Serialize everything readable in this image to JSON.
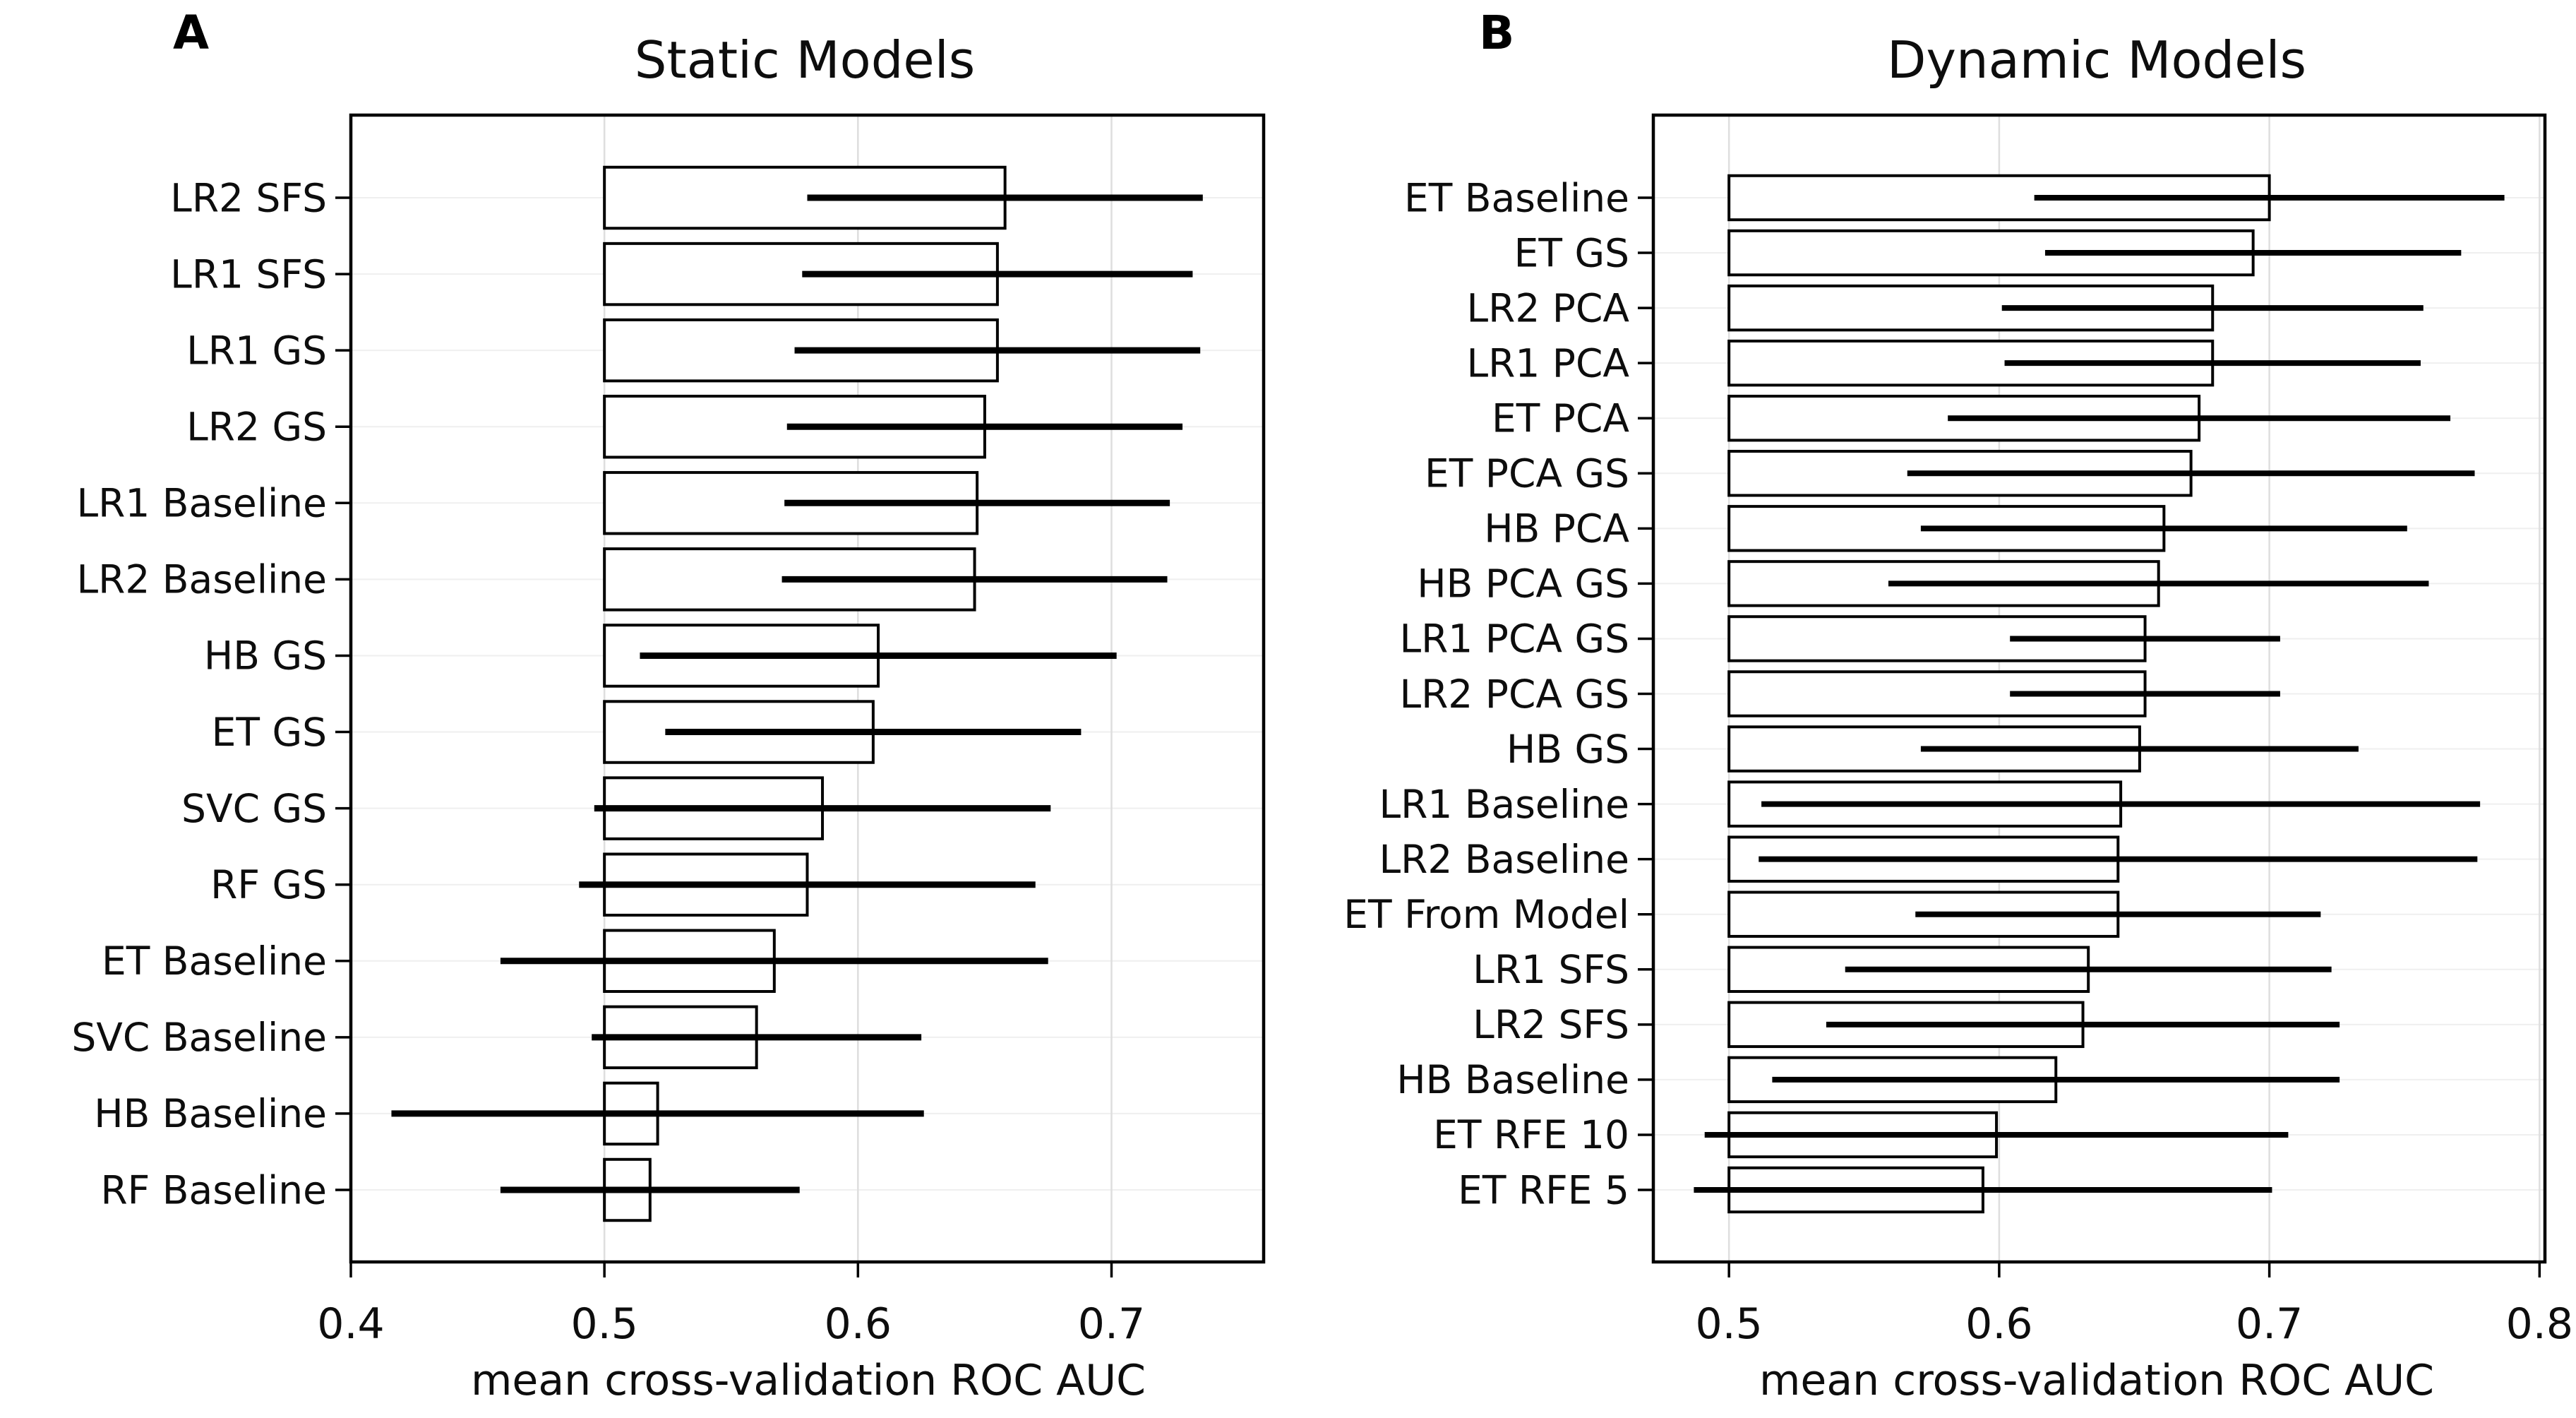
{
  "chart_data": [
    {
      "type": "bar",
      "orientation": "horizontal",
      "panel_label": "A",
      "title": "Static Models",
      "xlabel": "mean cross-validation ROC AUC",
      "xlim": [
        0.4,
        0.76
      ],
      "xticks": [
        0.4,
        0.5,
        0.6,
        0.7
      ],
      "bar_start": 0.5,
      "grid": true,
      "legend_position": "none",
      "bar_fill": "#ffffff",
      "bar_edge": "#000000",
      "error_color": "#000000",
      "categories": [
        "LR2 SFS",
        "LR1 SFS",
        "LR1 GS",
        "LR2 GS",
        "LR1 Baseline",
        "LR2 Baseline",
        "HB GS",
        "ET GS",
        "SVC GS",
        "RF GS",
        "ET Baseline",
        "SVC Baseline",
        "HB Baseline",
        "RF Baseline"
      ],
      "values": [
        0.658,
        0.655,
        0.655,
        0.65,
        0.647,
        0.646,
        0.608,
        0.606,
        0.586,
        0.58,
        0.567,
        0.56,
        0.521,
        0.518
      ],
      "errors": [
        0.078,
        0.077,
        0.08,
        0.078,
        0.076,
        0.076,
        0.094,
        0.082,
        0.09,
        0.09,
        0.108,
        0.065,
        0.105,
        0.059
      ]
    },
    {
      "type": "bar",
      "orientation": "horizontal",
      "panel_label": "B",
      "title": "Dynamic Models",
      "xlabel": "mean cross-validation ROC AUC",
      "xlim": [
        0.472,
        0.802
      ],
      "xticks": [
        0.5,
        0.6,
        0.7,
        0.8
      ],
      "bar_start": 0.5,
      "grid": true,
      "legend_position": "none",
      "bar_fill": "#ffffff",
      "bar_edge": "#000000",
      "error_color": "#000000",
      "categories": [
        "ET Baseline",
        "ET GS",
        "LR2 PCA",
        "LR1 PCA",
        "ET PCA",
        "ET PCA GS",
        "HB PCA",
        "HB PCA GS",
        "LR1 PCA GS",
        "LR2 PCA GS",
        "HB GS",
        "LR1 Baseline",
        "LR2 Baseline",
        "ET From Model",
        "LR1 SFS",
        "LR2 SFS",
        "HB Baseline",
        "ET RFE 10",
        "ET RFE 5"
      ],
      "values": [
        0.7,
        0.694,
        0.679,
        0.679,
        0.674,
        0.671,
        0.661,
        0.659,
        0.654,
        0.654,
        0.652,
        0.645,
        0.644,
        0.644,
        0.633,
        0.631,
        0.621,
        0.599,
        0.594
      ],
      "errors": [
        0.087,
        0.077,
        0.078,
        0.077,
        0.093,
        0.105,
        0.09,
        0.1,
        0.05,
        0.05,
        0.081,
        0.133,
        0.133,
        0.075,
        0.09,
        0.095,
        0.105,
        0.108,
        0.107
      ]
    }
  ]
}
